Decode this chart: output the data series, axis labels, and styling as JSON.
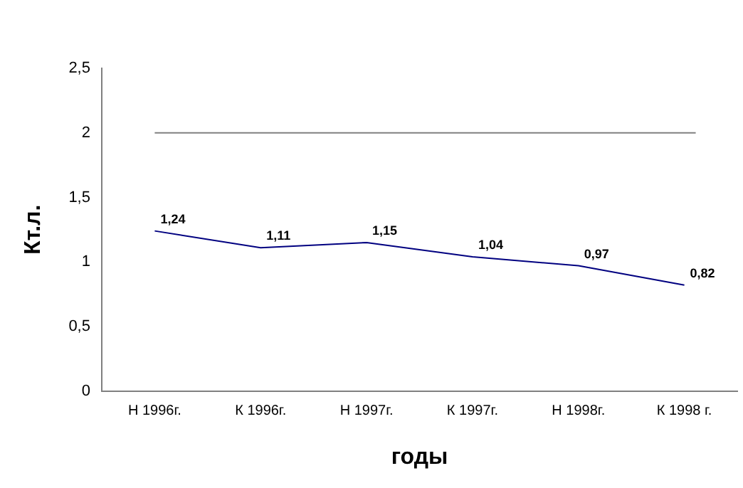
{
  "chart_data": {
    "type": "line",
    "xlabel": "годы",
    "ylabel": "Кт.л.",
    "categories": [
      "Н 1996г.",
      "К 1996г.",
      "Н 1997г.",
      "К 1997г.",
      "Н 1998г.",
      "К 1998 г."
    ],
    "series": [
      {
        "color": "#000080",
        "values": [
          1.24,
          1.11,
          1.15,
          1.04,
          0.97,
          0.82
        ],
        "value_labels": [
          "1,24",
          "1,11",
          "1,15",
          "1,04",
          "0,97",
          "0,82"
        ]
      }
    ],
    "ylim": [
      0,
      2.5
    ],
    "yticks": [
      0,
      {
        "value": 0.5,
        "label": "0,5"
      },
      1,
      {
        "value": 1.5,
        "label": "1,5"
      },
      2,
      {
        "value": 2.5,
        "label": "2,5"
      }
    ],
    "ref_lines": [
      {
        "axis": "y",
        "value": 2,
        "color": "#808080"
      }
    ],
    "grid": false,
    "legend": false,
    "marker": "none",
    "line_style": "solid"
  }
}
